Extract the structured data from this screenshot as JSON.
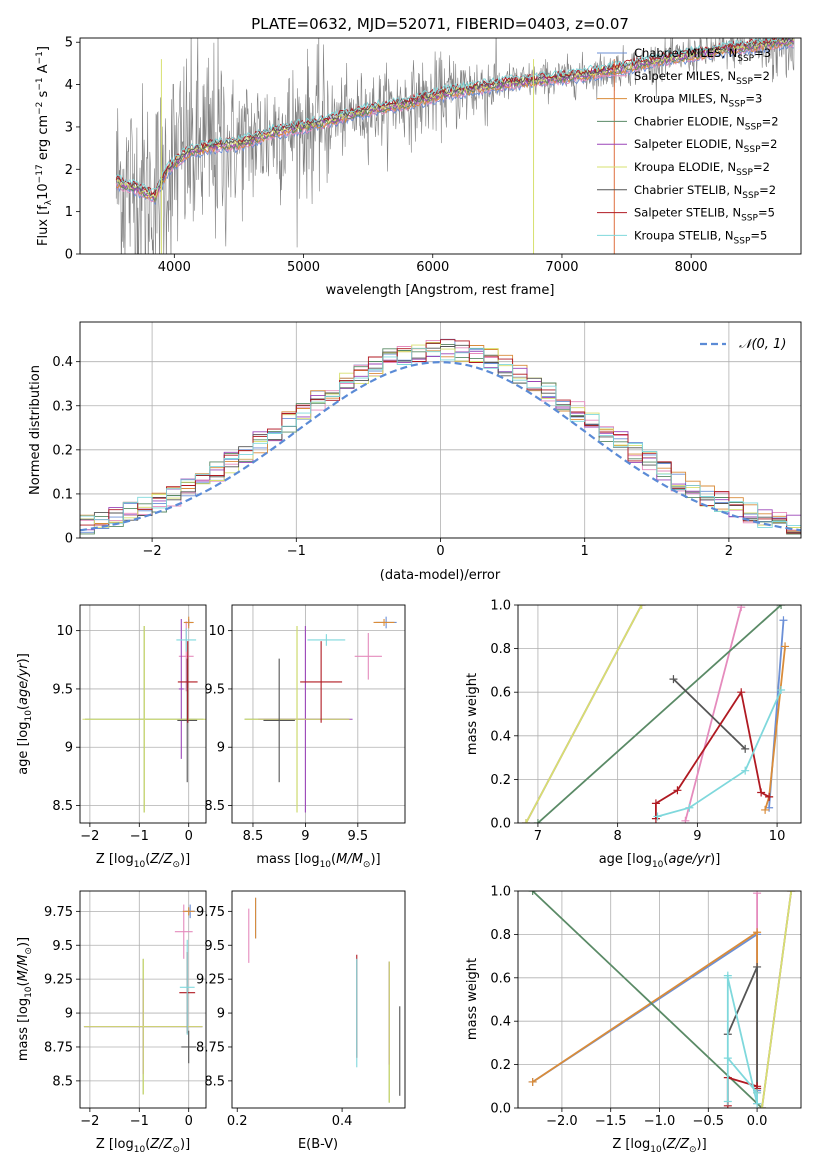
{
  "figure_title": "PLATE=0632, MJD=52071, FIBERID=0403, z=0.07",
  "colors": {
    "chabrier_miles": "#6b8fd6",
    "salpeter_miles": "#e58bbd",
    "kroupa_miles": "#d98c3a",
    "chabrier_elodie": "#5a8a66",
    "salpeter_elodie": "#9b45b8",
    "kroupa_elodie": "#d7e06f",
    "chabrier_stelib": "#555555",
    "salpeter_stelib": "#b01a22",
    "kroupa_stelib": "#7fd8dc",
    "data": "#808080",
    "normal": "#5b8bd6"
  },
  "chart_data": [
    {
      "id": "spectrum",
      "type": "line",
      "title": "PLATE=0632, MJD=52071, FIBERID=0403, z=0.07",
      "xlabel": "wavelength [Angstrom, rest frame]",
      "ylabel": "Flux [f_λ 10^-17 erg cm^-2 s^-1 A^-1]",
      "xlim": [
        3270,
        8850
      ],
      "ylim": [
        0,
        5.1
      ],
      "xticks": [
        4000,
        5000,
        6000,
        7000,
        8000
      ],
      "yticks": [
        0,
        1,
        2,
        3,
        4,
        5
      ],
      "grid": false,
      "legend_position": "top-right",
      "legend": [
        {
          "key": "chabrier_miles",
          "label": "Chabrier MILES, N",
          "sub": "SSP",
          "suffix": "=3"
        },
        {
          "key": "salpeter_miles",
          "label": "Salpeter MILES, N",
          "sub": "SSP",
          "suffix": "=2"
        },
        {
          "key": "kroupa_miles",
          "label": "Kroupa MILES, N",
          "sub": "SSP",
          "suffix": "=3"
        },
        {
          "key": "chabrier_elodie",
          "label": "Chabrier ELODIE, N",
          "sub": "SSP",
          "suffix": "=2"
        },
        {
          "key": "salpeter_elodie",
          "label": "Salpeter ELODIE, N",
          "sub": "SSP",
          "suffix": "=2"
        },
        {
          "key": "kroupa_elodie",
          "label": "Kroupa ELODIE, N",
          "sub": "SSP",
          "suffix": "=2"
        },
        {
          "key": "chabrier_stelib",
          "label": "Chabrier STELIB, N",
          "sub": "SSP",
          "suffix": "=2"
        },
        {
          "key": "salpeter_stelib",
          "label": "Salpeter STELIB, N",
          "sub": "SSP",
          "suffix": "=5"
        },
        {
          "key": "kroupa_stelib",
          "label": "Kroupa STELIB, N",
          "sub": "SSP",
          "suffix": "=5"
        }
      ],
      "data_range": [
        3550,
        8800
      ],
      "continuum": {
        "x": [
          3550,
          3700,
          3850,
          3950,
          4100,
          4300,
          4500,
          4800,
          5000,
          5200,
          5500,
          5800,
          6100,
          6500,
          6800,
          7100,
          7400,
          7800,
          8200,
          8800
        ],
        "y": [
          1.7,
          1.55,
          1.35,
          2.0,
          2.4,
          2.55,
          2.6,
          2.9,
          3.0,
          3.15,
          3.4,
          3.55,
          3.8,
          4.0,
          4.1,
          4.2,
          4.35,
          4.6,
          4.8,
          5.05
        ]
      }
    },
    {
      "id": "residuals",
      "type": "histogram",
      "xlabel": "(data-model)/error",
      "ylabel": "Normed distribution",
      "xlim": [
        -2.5,
        2.5
      ],
      "ylim": [
        0,
        0.49
      ],
      "xticks": [
        -2,
        -1,
        0,
        1,
        2
      ],
      "yticks": [
        0.0,
        0.1,
        0.2,
        0.3,
        0.4
      ],
      "grid": true,
      "legend_position": "top-right",
      "reference_label": "𝒩(0, 1)",
      "bin_width": 0.1
    },
    {
      "id": "age_vs_Z",
      "type": "scatter",
      "xlabel": "Z [log10(Z/Z⊙)]",
      "ylabel": "age [log10(age/yr)]",
      "xlim": [
        -2.2,
        0.35
      ],
      "ylim": [
        8.35,
        10.22
      ],
      "xticks": [
        -2,
        -1,
        0
      ],
      "yticks": [
        8.5,
        9.0,
        9.5,
        10.0
      ],
      "grid": true,
      "points": [
        {
          "key": "chabrier_miles",
          "x": 0.0,
          "y": 10.07,
          "xerr": 0.08,
          "yerr": 0.03
        },
        {
          "key": "salpeter_miles",
          "x": -0.05,
          "y": 9.78,
          "xerr": 0.15,
          "yerr": 0.3
        },
        {
          "key": "kroupa_miles",
          "x": 0.0,
          "y": 10.07,
          "xerr": 0.1,
          "yerr": 0.05
        },
        {
          "key": "chabrier_elodie",
          "x": -0.9,
          "y": 9.24,
          "xerr": 1.2,
          "yerr": 0.8
        },
        {
          "key": "salpeter_elodie",
          "x": -0.15,
          "y": 9.5,
          "xerr": 0.05,
          "yerr": 0.6
        },
        {
          "key": "kroupa_elodie",
          "x": -0.9,
          "y": 9.24,
          "xerr": 1.25,
          "yerr": 0.8
        },
        {
          "key": "chabrier_stelib",
          "x": -0.03,
          "y": 9.23,
          "xerr": 0.2,
          "yerr": 0.53
        },
        {
          "key": "salpeter_stelib",
          "x": -0.02,
          "y": 9.56,
          "xerr": 0.2,
          "yerr": 0.35
        },
        {
          "key": "kroupa_stelib",
          "x": -0.05,
          "y": 9.92,
          "xerr": 0.2,
          "yerr": 0.1
        }
      ]
    },
    {
      "id": "age_vs_mass",
      "type": "scatter",
      "xlabel": "mass [log10(M/M⊙)]",
      "xlim": [
        8.3,
        9.95
      ],
      "ylim": [
        8.35,
        10.22
      ],
      "xticks": [
        8.5,
        9.0,
        9.5
      ],
      "yticks": [
        8.5,
        9.0,
        9.5,
        10.0
      ],
      "grid": true,
      "points": [
        {
          "key": "chabrier_miles",
          "x": 9.77,
          "y": 10.07,
          "xerr": 0.1,
          "yerr": 0.05
        },
        {
          "key": "salpeter_miles",
          "x": 9.6,
          "y": 9.78,
          "xerr": 0.13,
          "yerr": 0.2
        },
        {
          "key": "kroupa_miles",
          "x": 9.75,
          "y": 10.07,
          "xerr": 0.1,
          "yerr": 0.03
        },
        {
          "key": "chabrier_elodie",
          "x": 8.92,
          "y": 9.24,
          "xerr": 0.5,
          "yerr": 0.8
        },
        {
          "key": "salpeter_elodie",
          "x": 9.0,
          "y": 9.24,
          "xerr": 0.45,
          "yerr": 0.8
        },
        {
          "key": "kroupa_elodie",
          "x": 8.92,
          "y": 9.24,
          "xerr": 0.5,
          "yerr": 0.8
        },
        {
          "key": "chabrier_stelib",
          "x": 8.75,
          "y": 9.23,
          "xerr": 0.15,
          "yerr": 0.53
        },
        {
          "key": "salpeter_stelib",
          "x": 9.15,
          "y": 9.56,
          "xerr": 0.2,
          "yerr": 0.35
        },
        {
          "key": "kroupa_stelib",
          "x": 9.2,
          "y": 9.92,
          "xerr": 0.18,
          "yerr": 0.05
        }
      ]
    },
    {
      "id": "weight_vs_age",
      "type": "line",
      "xlabel": "age [log10(age/yr)]",
      "ylabel": "mass weight",
      "xlim": [
        6.75,
        10.3
      ],
      "ylim": [
        0,
        1.0
      ],
      "xticks": [
        7,
        8,
        9,
        10
      ],
      "yticks": [
        0.0,
        0.2,
        0.4,
        0.6,
        0.8,
        1.0
      ],
      "grid": true,
      "series": [
        {
          "key": "chabrier_miles",
          "x": [
            9.9,
            10.08
          ],
          "y": [
            0.07,
            0.93
          ]
        },
        {
          "key": "salpeter_miles",
          "x": [
            8.85,
            9.55
          ],
          "y": [
            0.01,
            0.99
          ]
        },
        {
          "key": "kroupa_miles",
          "x": [
            9.85,
            9.9,
            10.1
          ],
          "y": [
            0.06,
            0.12,
            0.81
          ]
        },
        {
          "key": "chabrier_elodie",
          "x": [
            7.0,
            10.05
          ],
          "y": [
            0.0,
            1.0
          ]
        },
        {
          "key": "salpeter_elodie",
          "x": [
            6.85,
            8.3
          ],
          "y": [
            0.0,
            1.0
          ]
        },
        {
          "key": "kroupa_elodie",
          "x": [
            6.85,
            8.3
          ],
          "y": [
            0.0,
            1.0
          ]
        },
        {
          "key": "chabrier_stelib",
          "x": [
            8.7,
            9.6
          ],
          "y": [
            0.66,
            0.34
          ]
        },
        {
          "key": "salpeter_stelib",
          "x": [
            8.48,
            8.48,
            8.75,
            9.55,
            9.8,
            9.9
          ],
          "y": [
            0.02,
            0.09,
            0.15,
            0.6,
            0.14,
            0.12
          ]
        },
        {
          "key": "kroupa_stelib",
          "x": [
            8.5,
            8.9,
            9.6,
            10.05
          ],
          "y": [
            0.03,
            0.07,
            0.24,
            0.61
          ]
        }
      ]
    },
    {
      "id": "mass_vs_Z",
      "type": "scatter",
      "xlabel": "Z [log10(Z/Z⊙)]",
      "ylabel": "mass [log10(M/M⊙)]",
      "xlim": [
        -2.2,
        0.35
      ],
      "ylim": [
        8.3,
        9.9
      ],
      "xticks": [
        -2,
        -1,
        0
      ],
      "yticks": [
        8.5,
        8.75,
        9.0,
        9.25,
        9.5,
        9.75
      ],
      "grid": true,
      "points": [
        {
          "key": "chabrier_miles",
          "x": 0.03,
          "y": 9.75,
          "xerr": 0.1,
          "yerr": 0.05
        },
        {
          "key": "salpeter_miles",
          "x": -0.1,
          "y": 9.6,
          "xerr": 0.18,
          "yerr": 0.2
        },
        {
          "key": "kroupa_miles",
          "x": 0.0,
          "y": 9.75,
          "xerr": 0.12,
          "yerr": 0.03
        },
        {
          "key": "chabrier_elodie",
          "x": -0.92,
          "y": 8.9,
          "xerr": 1.2,
          "yerr": 0.5
        },
        {
          "key": "salpeter_elodie",
          "x": -0.92,
          "y": 8.9,
          "xerr": 1.2,
          "yerr": 0.35
        },
        {
          "key": "kroupa_elodie",
          "x": -0.92,
          "y": 8.9,
          "xerr": 1.2,
          "yerr": 0.5
        },
        {
          "key": "chabrier_stelib",
          "x": 0.0,
          "y": 8.75,
          "xerr": 0.15,
          "yerr": 0.12
        },
        {
          "key": "salpeter_stelib",
          "x": -0.03,
          "y": 9.15,
          "xerr": 0.16,
          "yerr": 0.3
        },
        {
          "key": "kroupa_stelib",
          "x": -0.03,
          "y": 9.19,
          "xerr": 0.15,
          "yerr": 0.35
        }
      ]
    },
    {
      "id": "mass_vs_ebv",
      "type": "scatter",
      "xlabel": "E(B-V)",
      "xlim": [
        0.19,
        0.52
      ],
      "ylim": [
        8.3,
        9.9
      ],
      "xticks": [
        0.2,
        0.4
      ],
      "yticks": [
        8.5,
        8.75,
        9.0,
        9.25,
        9.5,
        9.75
      ],
      "grid": false,
      "points": [
        {
          "key": "chabrier_miles",
          "x": 0.235,
          "y": 9.7,
          "xerr": 0.0,
          "yerr": 0.15
        },
        {
          "key": "salpeter_miles",
          "x": 0.222,
          "y": 9.57,
          "xerr": 0.0,
          "yerr": 0.2
        },
        {
          "key": "kroupa_miles",
          "x": 0.235,
          "y": 9.7,
          "xerr": 0.0,
          "yerr": 0.15
        },
        {
          "key": "chabrier_elodie",
          "x": 0.49,
          "y": 8.86,
          "xerr": 0.0,
          "yerr": 0.52
        },
        {
          "key": "salpeter_elodie",
          "x": 0.49,
          "y": 9.0,
          "xerr": 0.0,
          "yerr": 0.38
        },
        {
          "key": "kroupa_elodie",
          "x": 0.49,
          "y": 8.86,
          "xerr": 0.0,
          "yerr": 0.52
        },
        {
          "key": "chabrier_stelib",
          "x": 0.51,
          "y": 8.72,
          "xerr": 0.0,
          "yerr": 0.33
        },
        {
          "key": "salpeter_stelib",
          "x": 0.428,
          "y": 9.05,
          "xerr": 0.0,
          "yerr": 0.38
        },
        {
          "key": "kroupa_stelib",
          "x": 0.428,
          "y": 9.0,
          "xerr": 0.0,
          "yerr": 0.4
        }
      ]
    },
    {
      "id": "weight_vs_Z",
      "type": "line",
      "xlabel": "Z [log10(Z/Z⊙)]",
      "ylabel": "mass weight",
      "xlim": [
        -2.45,
        0.45
      ],
      "ylim": [
        0,
        1.0
      ],
      "xticks": [
        -2.0,
        -1.5,
        -1.0,
        -0.5,
        0.0
      ],
      "yticks": [
        0.0,
        0.2,
        0.4,
        0.6,
        0.8,
        1.0
      ],
      "grid": true,
      "series": [
        {
          "key": "chabrier_miles",
          "x": [
            -2.3,
            0.0,
            0.0
          ],
          "y": [
            0.12,
            0.8,
            0.08
          ]
        },
        {
          "key": "salpeter_miles",
          "x": [
            0.0,
            0.0
          ],
          "y": [
            0.02,
            0.99
          ]
        },
        {
          "key": "kroupa_miles",
          "x": [
            -2.3,
            0.0,
            0.0
          ],
          "y": [
            0.12,
            0.81,
            0.07
          ]
        },
        {
          "key": "chabrier_elodie",
          "x": [
            -2.3,
            0.05
          ],
          "y": [
            1.0,
            0.0
          ]
        },
        {
          "key": "salpeter_elodie",
          "x": [
            0.05,
            0.35
          ],
          "y": [
            0.0,
            1.0
          ]
        },
        {
          "key": "kroupa_elodie",
          "x": [
            0.05,
            0.35
          ],
          "y": [
            0.0,
            1.0
          ]
        },
        {
          "key": "chabrier_stelib",
          "x": [
            -0.3,
            0.0,
            0.0
          ],
          "y": [
            0.34,
            0.65,
            0.09
          ]
        },
        {
          "key": "salpeter_stelib",
          "x": [
            -0.3,
            -0.3,
            0.0,
            0.0
          ],
          "y": [
            0.01,
            0.14,
            0.1,
            0.09
          ]
        },
        {
          "key": "kroupa_stelib",
          "x": [
            -0.3,
            -0.3,
            0.0,
            0.0,
            -0.3,
            -0.3
          ],
          "y": [
            0.03,
            0.6,
            0.02,
            0.07,
            0.23,
            0.61
          ]
        }
      ]
    }
  ]
}
